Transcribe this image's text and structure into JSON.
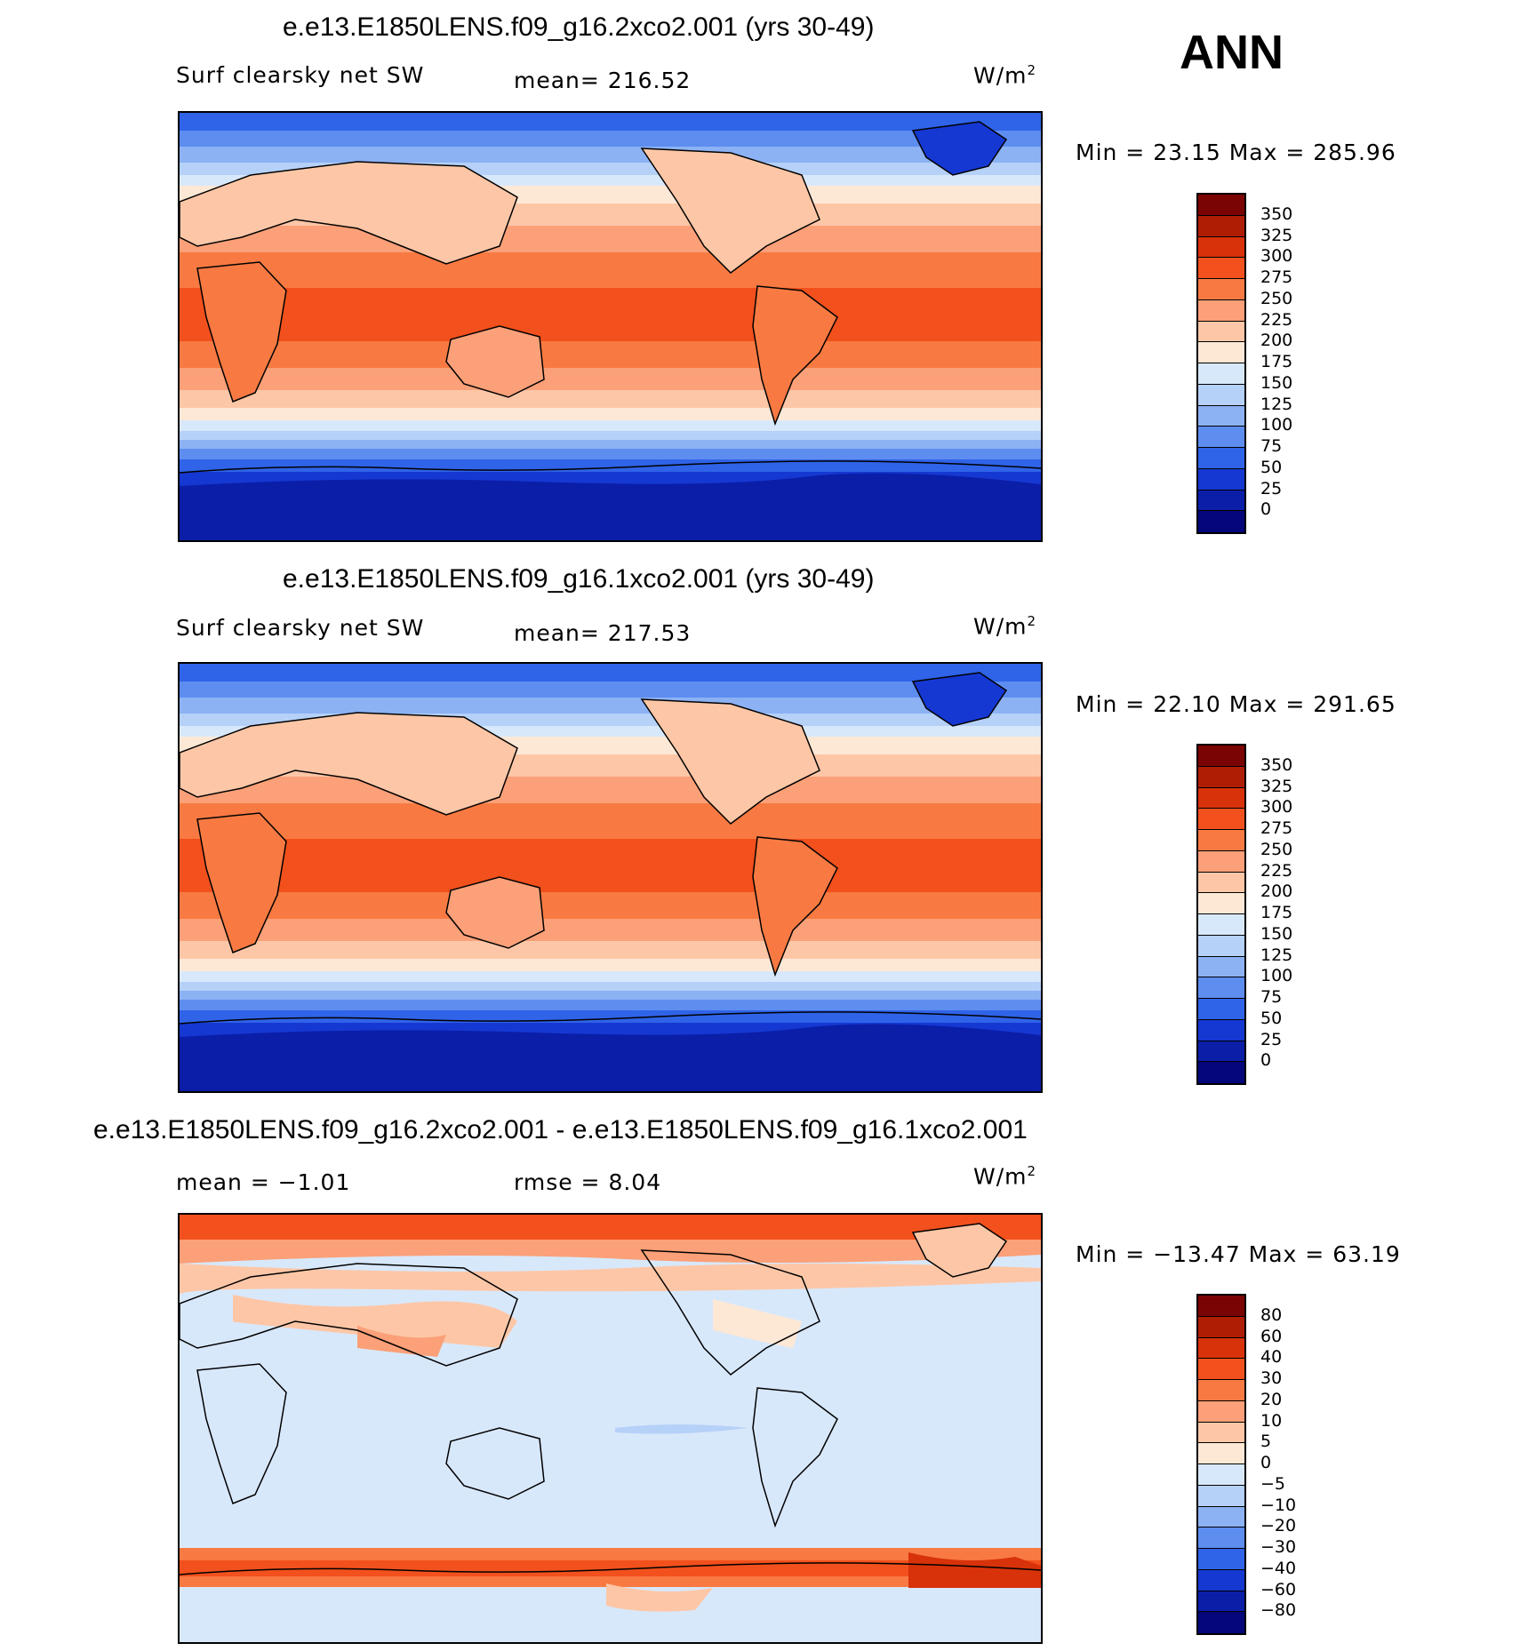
{
  "season": "ANN",
  "units": {
    "base": "W/m",
    "exp": "2"
  },
  "panels": [
    {
      "title": "e.e13.E1850LENS.f09_g16.2xco2.001 (yrs 30-49)",
      "variable": "Surf clearsky net SW",
      "mean_label": "mean= 216.52",
      "minmax": "Min =   23.15 Max = 285.96"
    },
    {
      "title": "e.e13.E1850LENS.f09_g16.1xco2.001 (yrs 30-49)",
      "variable": "Surf clearsky net SW",
      "mean_label": "mean= 217.53",
      "minmax": "Min =   22.10 Max = 291.65"
    },
    {
      "title": "e.e13.E1850LENS.f09_g16.2xco2.001 - e.e13.E1850LENS.f09_g16.1xco2.001",
      "mean_label": "mean =  −1.01",
      "rmse_label": "rmse =    8.04",
      "minmax": "Min = −13.47 Max =  63.19"
    }
  ],
  "colorbars": {
    "absolute": {
      "levels": [
        "350",
        "325",
        "300",
        "275",
        "250",
        "225",
        "200",
        "175",
        "150",
        "125",
        "100",
        "75",
        "50",
        "25",
        "0"
      ],
      "colors": [
        "#7a0403",
        "#b01d05",
        "#d8320a",
        "#f2501c",
        "#f87a42",
        "#fba078",
        "#fdc7a7",
        "#fde8d6",
        "#d8e8fb",
        "#b6d1f8",
        "#8cb2f4",
        "#5e8df0",
        "#2f63e8",
        "#1538d2",
        "#0b1ea8",
        "#04067a"
      ]
    },
    "difference": {
      "levels": [
        "80",
        "60",
        "40",
        "30",
        "20",
        "10",
        "5",
        "0",
        "−5",
        "−10",
        "−20",
        "−30",
        "−40",
        "−60",
        "−80"
      ],
      "colors": [
        "#7a0403",
        "#b01d05",
        "#d8320a",
        "#f2501c",
        "#f87a42",
        "#fba078",
        "#fdc7a7",
        "#fde8d6",
        "#d8e8fb",
        "#b6d1f8",
        "#8cb2f4",
        "#5e8df0",
        "#2f63e8",
        "#1538d2",
        "#0b1ea8",
        "#04067a"
      ]
    }
  }
}
